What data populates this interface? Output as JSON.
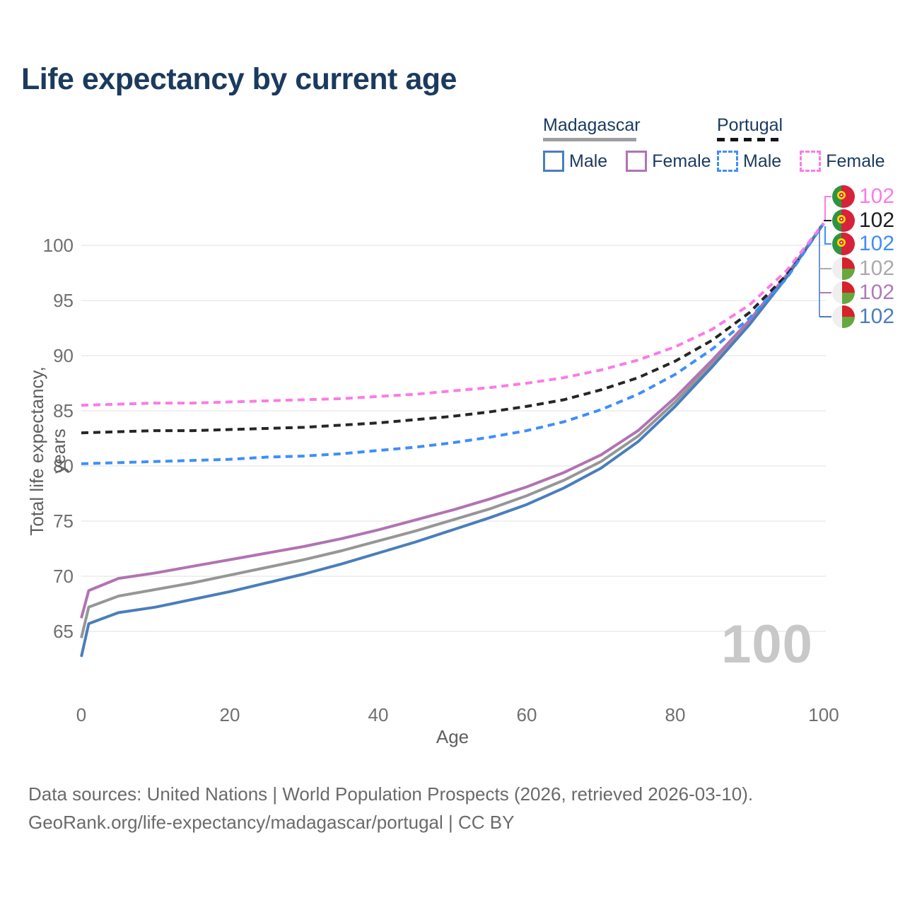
{
  "title": "Life expectancy by current age",
  "legend": {
    "groups": [
      {
        "name": "Madagascar",
        "line_style": "solid",
        "underline_color": "#9e9e9e",
        "items": [
          {
            "label": "Male",
            "color": "#4a7ebb"
          },
          {
            "label": "Female",
            "color": "#b173b3"
          }
        ]
      },
      {
        "name": "Portugal",
        "line_style": "dashed",
        "underline_color": "#141414",
        "items": [
          {
            "label": "Male",
            "color": "#3f8efa"
          },
          {
            "label": "Female",
            "color": "#fb7be6"
          }
        ]
      }
    ]
  },
  "axes": {
    "y_label": "Total life expectancy, years",
    "x_label": "Age",
    "y_ticks": [
      "65",
      "70",
      "75",
      "80",
      "85",
      "90",
      "95",
      "100"
    ],
    "x_ticks": [
      "0",
      "20",
      "40",
      "60",
      "80",
      "100"
    ]
  },
  "watermark": "100",
  "end_labels": [
    {
      "series": "Portugal Female",
      "flag": "portugal",
      "value": "102",
      "color": "#fb7be6"
    },
    {
      "series": "Portugal Total",
      "flag": "portugal",
      "value": "102",
      "color": "#1d1d1d"
    },
    {
      "series": "Portugal Male",
      "flag": "portugal",
      "value": "102",
      "color": "#3f8efa"
    },
    {
      "series": "Madagascar Total",
      "flag": "madagascar",
      "value": "102",
      "color": "#ababab"
    },
    {
      "series": "Madagascar Female",
      "flag": "madagascar",
      "value": "102",
      "color": "#ad7cb5"
    },
    {
      "series": "Madagascar Male",
      "flag": "madagascar",
      "value": "102",
      "color": "#4a7ebb"
    }
  ],
  "footer": {
    "line1": "Data sources: United Nations | World Population Prospects (2026, retrieved 2026-03-10).",
    "line2": "GeoRank.org/life-expectancy/madagascar/portugal | CC BY"
  },
  "chart_data": {
    "type": "line",
    "title": "Life expectancy by current age",
    "xlabel": "Age",
    "ylabel": "Total life expectancy, years",
    "xlim": [
      0,
      100
    ],
    "ylim": [
      62,
      103
    ],
    "x_ticks": [
      0,
      20,
      40,
      60,
      80,
      100
    ],
    "y_ticks": [
      65,
      70,
      75,
      80,
      85,
      90,
      95,
      100
    ],
    "grid": "horizontal",
    "grid_color": "#ebebeb",
    "legend_position": "top-right",
    "end_value_label": 102,
    "series": [
      {
        "name": "Madagascar Total",
        "country": "Madagascar",
        "sex": "total",
        "color": "#969696",
        "dash": false,
        "points": [
          [
            0,
            64.4
          ],
          [
            1,
            67.2
          ],
          [
            5,
            68.2
          ],
          [
            10,
            68.8
          ],
          [
            15,
            69.4
          ],
          [
            20,
            70.1
          ],
          [
            25,
            70.8
          ],
          [
            30,
            71.5
          ],
          [
            35,
            72.3
          ],
          [
            40,
            73.2
          ],
          [
            45,
            74.1
          ],
          [
            50,
            75.1
          ],
          [
            55,
            76.1
          ],
          [
            60,
            77.3
          ],
          [
            65,
            78.7
          ],
          [
            70,
            80.4
          ],
          [
            75,
            82.7
          ],
          [
            80,
            85.8
          ],
          [
            85,
            89.3
          ],
          [
            90,
            93.0
          ],
          [
            95,
            97.2
          ],
          [
            100,
            102
          ]
        ]
      },
      {
        "name": "Madagascar Female",
        "country": "Madagascar",
        "sex": "female",
        "color": "#b173b3",
        "dash": false,
        "points": [
          [
            0,
            66.2
          ],
          [
            1,
            68.7
          ],
          [
            5,
            69.8
          ],
          [
            10,
            70.3
          ],
          [
            15,
            70.9
          ],
          [
            20,
            71.5
          ],
          [
            25,
            72.1
          ],
          [
            30,
            72.7
          ],
          [
            35,
            73.4
          ],
          [
            40,
            74.2
          ],
          [
            45,
            75.1
          ],
          [
            50,
            76.0
          ],
          [
            55,
            77.0
          ],
          [
            60,
            78.1
          ],
          [
            65,
            79.4
          ],
          [
            70,
            81.0
          ],
          [
            75,
            83.2
          ],
          [
            80,
            86.2
          ],
          [
            85,
            89.6
          ],
          [
            90,
            93.2
          ],
          [
            95,
            97.3
          ],
          [
            100,
            102
          ]
        ]
      },
      {
        "name": "Madagascar Male",
        "country": "Madagascar",
        "sex": "male",
        "color": "#4a7ebb",
        "dash": false,
        "points": [
          [
            0,
            62.7
          ],
          [
            1,
            65.7
          ],
          [
            5,
            66.7
          ],
          [
            10,
            67.2
          ],
          [
            15,
            67.9
          ],
          [
            20,
            68.6
          ],
          [
            25,
            69.4
          ],
          [
            30,
            70.2
          ],
          [
            35,
            71.1
          ],
          [
            40,
            72.1
          ],
          [
            45,
            73.1
          ],
          [
            50,
            74.2
          ],
          [
            55,
            75.3
          ],
          [
            60,
            76.5
          ],
          [
            65,
            78.0
          ],
          [
            70,
            79.8
          ],
          [
            75,
            82.2
          ],
          [
            80,
            85.4
          ],
          [
            85,
            89.0
          ],
          [
            90,
            92.8
          ],
          [
            95,
            97.1
          ],
          [
            100,
            102
          ]
        ]
      },
      {
        "name": "Portugal Total",
        "country": "Portugal",
        "sex": "total",
        "color": "#262626",
        "dash": true,
        "points": [
          [
            0,
            83.0
          ],
          [
            5,
            83.1
          ],
          [
            10,
            83.2
          ],
          [
            15,
            83.2
          ],
          [
            20,
            83.3
          ],
          [
            25,
            83.4
          ],
          [
            30,
            83.5
          ],
          [
            35,
            83.7
          ],
          [
            40,
            83.9
          ],
          [
            45,
            84.2
          ],
          [
            50,
            84.5
          ],
          [
            55,
            84.9
          ],
          [
            60,
            85.4
          ],
          [
            65,
            86.0
          ],
          [
            70,
            86.9
          ],
          [
            75,
            88.0
          ],
          [
            80,
            89.5
          ],
          [
            85,
            91.4
          ],
          [
            90,
            93.9
          ],
          [
            95,
            97.3
          ],
          [
            100,
            102
          ]
        ]
      },
      {
        "name": "Portugal Male",
        "country": "Portugal",
        "sex": "male",
        "color": "#3f8efa",
        "dash": true,
        "points": [
          [
            0,
            80.2
          ],
          [
            5,
            80.3
          ],
          [
            10,
            80.4
          ],
          [
            15,
            80.5
          ],
          [
            20,
            80.6
          ],
          [
            25,
            80.8
          ],
          [
            30,
            80.9
          ],
          [
            35,
            81.1
          ],
          [
            40,
            81.4
          ],
          [
            45,
            81.7
          ],
          [
            50,
            82.1
          ],
          [
            55,
            82.6
          ],
          [
            60,
            83.2
          ],
          [
            65,
            84.0
          ],
          [
            70,
            85.1
          ],
          [
            75,
            86.5
          ],
          [
            80,
            88.3
          ],
          [
            85,
            90.6
          ],
          [
            90,
            93.4
          ],
          [
            95,
            97.0
          ],
          [
            100,
            102
          ]
        ]
      },
      {
        "name": "Portugal Female",
        "country": "Portugal",
        "sex": "female",
        "color": "#fb7be6",
        "dash": true,
        "points": [
          [
            0,
            85.5
          ],
          [
            5,
            85.6
          ],
          [
            10,
            85.7
          ],
          [
            15,
            85.7
          ],
          [
            20,
            85.8
          ],
          [
            25,
            85.9
          ],
          [
            30,
            86.0
          ],
          [
            35,
            86.1
          ],
          [
            40,
            86.3
          ],
          [
            45,
            86.5
          ],
          [
            50,
            86.8
          ],
          [
            55,
            87.1
          ],
          [
            60,
            87.5
          ],
          [
            65,
            88.0
          ],
          [
            70,
            88.7
          ],
          [
            75,
            89.6
          ],
          [
            80,
            90.8
          ],
          [
            85,
            92.4
          ],
          [
            90,
            94.6
          ],
          [
            95,
            97.7
          ],
          [
            100,
            102
          ]
        ]
      }
    ]
  }
}
